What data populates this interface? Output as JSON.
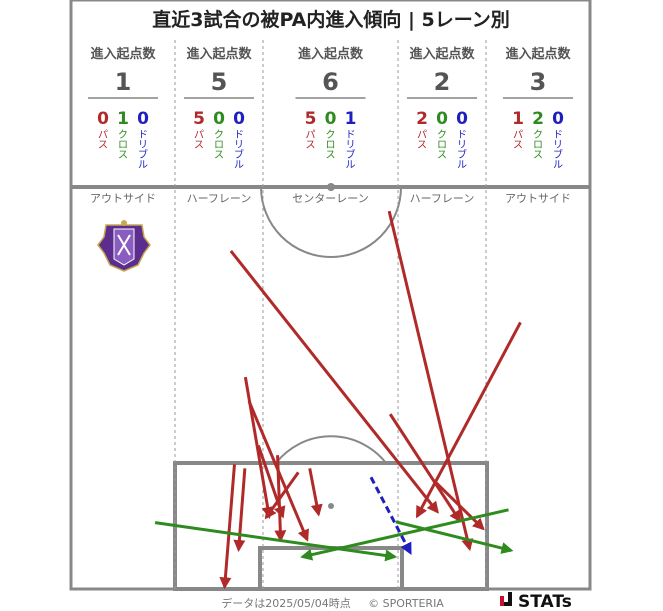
{
  "title": "直近3試合の被PA内進入傾向 | 5レーン別",
  "header_label": "進入起点数",
  "type_labels": {
    "pass": "パス",
    "cross": "クロス",
    "dribble": "ドリブル"
  },
  "colors": {
    "pass": "#b02a2a",
    "cross": "#2e8b1e",
    "dribble": "#1f1fbf",
    "pitch_line": "#888888",
    "lane_line": "#999999"
  },
  "footer": {
    "data_date": "データは2025/05/04時点",
    "copyright": "© SPORTERIA",
    "brand": "STATs"
  },
  "logo_icon": "club-crest-icon",
  "chart_data": {
    "type": "arrow-map",
    "title": "直近3試合の被PA内進入傾向 | 5レーン別",
    "lanes": [
      {
        "name": "アウトサイド",
        "total": 1,
        "pass": 0,
        "cross": 1,
        "dribble": 0
      },
      {
        "name": "ハーフレーン",
        "total": 5,
        "pass": 5,
        "cross": 0,
        "dribble": 0
      },
      {
        "name": "センターレーン",
        "total": 6,
        "pass": 5,
        "cross": 0,
        "dribble": 1
      },
      {
        "name": "ハーフレーン",
        "total": 2,
        "pass": 2,
        "cross": 0,
        "dribble": 0
      },
      {
        "name": "アウトサイド",
        "total": 3,
        "pass": 1,
        "cross": 2,
        "dribble": 0
      }
    ],
    "arrows": [
      {
        "type": "pass",
        "from": [
          30.8,
          84.1
        ],
        "to": [
          70.6,
          19.2
        ]
      },
      {
        "type": "pass",
        "from": [
          61.3,
          94.0
        ],
        "to": [
          76.8,
          10.0
        ]
      },
      {
        "type": "pass",
        "from": [
          86.6,
          66.3
        ],
        "to": [
          66.7,
          18.1
        ]
      },
      {
        "type": "pass",
        "from": [
          33.6,
          52.7
        ],
        "to": [
          38.2,
          18.0
        ]
      },
      {
        "type": "pass",
        "from": [
          34.3,
          46.7
        ],
        "to": [
          45.5,
          12.3
        ]
      },
      {
        "type": "pass",
        "from": [
          36.1,
          35.7
        ],
        "to": [
          40.8,
          18.1
        ]
      },
      {
        "type": "pass",
        "from": [
          39.8,
          33.3
        ],
        "to": [
          40.4,
          12.2
        ]
      },
      {
        "type": "pass",
        "from": [
          43.8,
          29.0
        ],
        "to": [
          37.6,
          17.8
        ]
      },
      {
        "type": "pass",
        "from": [
          46.0,
          30.0
        ],
        "to": [
          47.7,
          18.6
        ]
      },
      {
        "type": "pass",
        "from": [
          61.5,
          43.5
        ],
        "to": [
          74.9,
          17.0
        ]
      },
      {
        "type": "pass",
        "from": [
          69.9,
          27.0
        ],
        "to": [
          79.4,
          15.0
        ]
      },
      {
        "type": "pass",
        "from": [
          31.5,
          31.0
        ],
        "to": [
          29.6,
          0.5
        ]
      },
      {
        "type": "pass",
        "from": [
          33.5,
          30.0
        ],
        "to": [
          32.3,
          9.8
        ]
      },
      {
        "type": "cross",
        "from": [
          16.2,
          16.5
        ],
        "to": [
          62.4,
          8.0
        ]
      },
      {
        "type": "cross",
        "from": [
          84.3,
          19.7
        ],
        "to": [
          44.6,
          8.0
        ]
      },
      {
        "type": "cross",
        "from": [
          62.6,
          16.7
        ],
        "to": [
          84.8,
          9.6
        ]
      },
      {
        "type": "dribble",
        "from": [
          57.8,
          27.8
        ],
        "to": [
          65.4,
          9.0
        ]
      }
    ]
  }
}
